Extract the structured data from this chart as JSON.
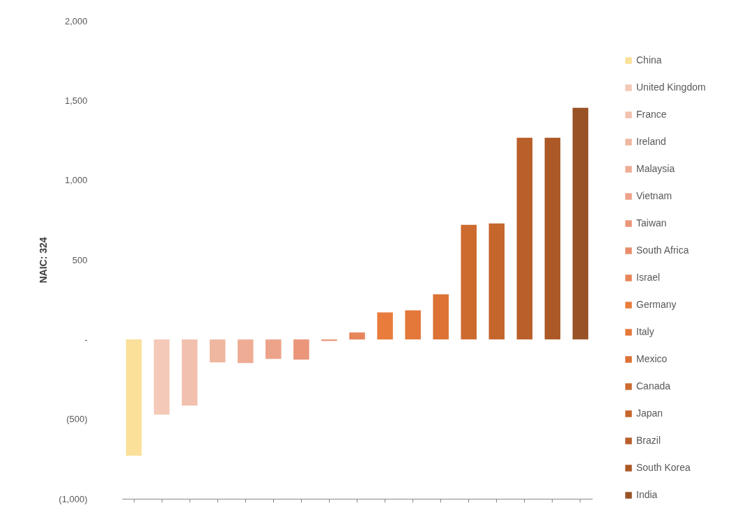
{
  "chart_data": {
    "type": "bar",
    "ylabel": "NAIC: 324",
    "categories": [
      null
    ],
    "series": [
      {
        "name": "China",
        "color": "#fbe09a",
        "values": [
          -730
        ]
      },
      {
        "name": "United Kingdom",
        "color": "#f4c9b8",
        "values": [
          -472
        ]
      },
      {
        "name": "France",
        "color": "#f2c0ae",
        "values": [
          -415
        ]
      },
      {
        "name": "Ireland",
        "color": "#efb7a0",
        "values": [
          -144
        ]
      },
      {
        "name": "Malaysia",
        "color": "#eeac95",
        "values": [
          -148
        ]
      },
      {
        "name": "Vietnam",
        "color": "#eda28a",
        "values": [
          -122
        ]
      },
      {
        "name": "Taiwan",
        "color": "#eb967a",
        "values": [
          -127
        ]
      },
      {
        "name": "South Africa",
        "color": "#e88d6b",
        "values": [
          -9
        ]
      },
      {
        "name": "Israel",
        "color": "#e7855a",
        "values": [
          44
        ]
      },
      {
        "name": "Germany",
        "color": "#e97c3c",
        "values": [
          170
        ]
      },
      {
        "name": "Italy",
        "color": "#e3783a",
        "values": [
          183
        ]
      },
      {
        "name": "Mexico",
        "color": "#dc7233",
        "values": [
          284
        ]
      },
      {
        "name": "Canada",
        "color": "#cd6b2f",
        "values": [
          720
        ]
      },
      {
        "name": "Japan",
        "color": "#c5662c",
        "values": [
          729
        ]
      },
      {
        "name": "Brazil",
        "color": "#b85f2a",
        "values": [
          1266
        ]
      },
      {
        "name": "South Korea",
        "color": "#ac5827",
        "values": [
          1266
        ]
      },
      {
        "name": "India",
        "color": "#985225",
        "values": [
          1454
        ]
      }
    ],
    "ylim": [
      -1000,
      2000
    ],
    "yticks": [
      {
        "value": 2000,
        "label": "2,000"
      },
      {
        "value": 1500,
        "label": "1,500"
      },
      {
        "value": 1000,
        "label": "1,000"
      },
      {
        "value": 500,
        "label": "500"
      },
      {
        "value": 0,
        "label": "-"
      },
      {
        "value": -500,
        "label": "(500)"
      },
      {
        "value": -1000,
        "label": "(1,000)"
      }
    ],
    "grid": false,
    "legend": "right"
  }
}
